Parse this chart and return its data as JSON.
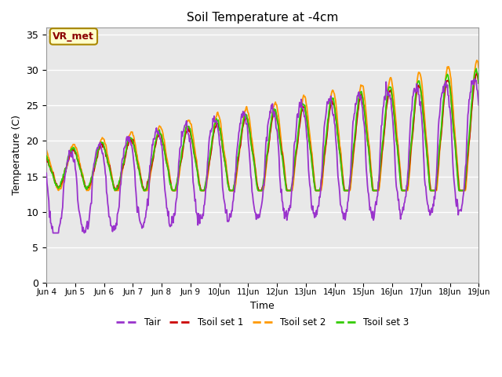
{
  "title": "Soil Temperature at -4cm",
  "xlabel": "Time",
  "ylabel": "Temperature (C)",
  "ylim": [
    0,
    36
  ],
  "yticks": [
    0,
    5,
    10,
    15,
    20,
    25,
    30,
    35
  ],
  "bg_color": "#e8e8e8",
  "fig_bg_color": "#ffffff",
  "grid_color": "#ffffff",
  "colors": {
    "Tair": "#9933cc",
    "Tsoil1": "#cc0000",
    "Tsoil2": "#ff9900",
    "Tsoil3": "#33cc00"
  },
  "legend_labels": [
    "Tair",
    "Tsoil set 1",
    "Tsoil set 2",
    "Tsoil set 3"
  ],
  "annotation_text": "VR_met",
  "annotation_bg": "#ffffcc",
  "annotation_border": "#aa8800",
  "days": 15,
  "start_day": 4,
  "pts_per_day": 48
}
